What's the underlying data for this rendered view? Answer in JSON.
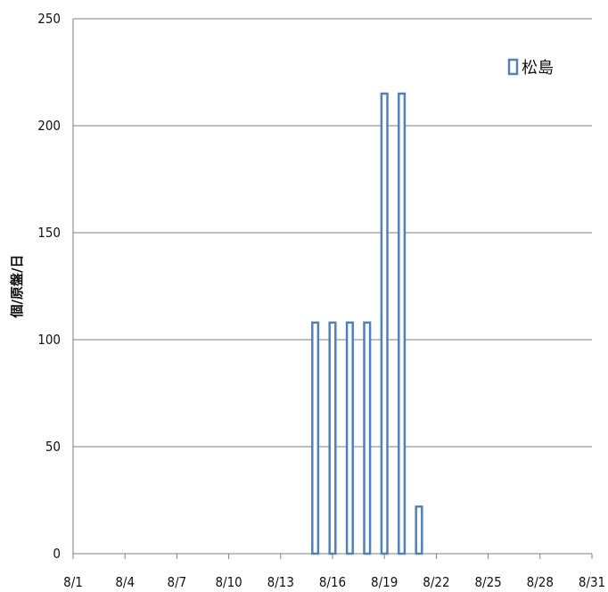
{
  "chart_data": {
    "type": "bar",
    "title": "",
    "ylabel": "個/原盤/日",
    "xlabel": "",
    "ylim": [
      0,
      250
    ],
    "yticks": [
      0,
      50,
      100,
      150,
      200,
      250
    ],
    "xticks": [
      "8/1",
      "8/4",
      "8/7",
      "8/10",
      "8/13",
      "8/16",
      "8/19",
      "8/22",
      "8/25",
      "8/28",
      "8/31"
    ],
    "x_start": "8/1",
    "x_end": "8/31",
    "grid": true,
    "legend_position": "top-right",
    "series": [
      {
        "name": "松島",
        "color": "#4f81bd",
        "points": [
          {
            "date": "8/15",
            "value": 108
          },
          {
            "date": "8/16",
            "value": 108
          },
          {
            "date": "8/17",
            "value": 108
          },
          {
            "date": "8/18",
            "value": 108
          },
          {
            "date": "8/19",
            "value": 215
          },
          {
            "date": "8/20",
            "value": 215
          },
          {
            "date": "8/21",
            "value": 22
          }
        ]
      }
    ]
  }
}
